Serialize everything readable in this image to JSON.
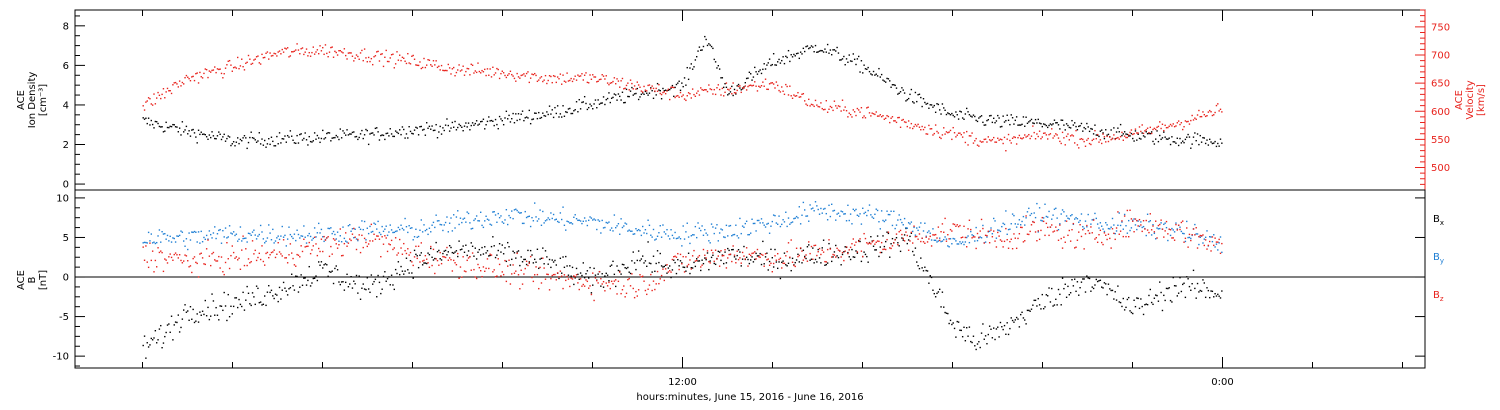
{
  "colors": {
    "black": "#000000",
    "blue": "#1f7fd4",
    "red": "#e8231d",
    "right_axis": "#e8231d"
  },
  "x_axis": {
    "label": "hours:minutes, June 15, 2016 - June 16, 2016",
    "range_hours": [
      -1.5,
      28.5
    ],
    "major_ticks": [
      {
        "hour": 12,
        "label": "12:00"
      },
      {
        "hour": 24,
        "label": "0:00"
      }
    ],
    "minor_tick_hours": [
      0,
      2,
      4,
      6,
      8,
      10,
      14,
      16,
      18,
      20,
      22,
      26,
      28
    ]
  },
  "chart_data": [
    {
      "type": "scatter",
      "name": "top-panel",
      "ylabel_lines": [
        "ACE",
        "Ion Density",
        "[cm⁻³]"
      ],
      "ylim": [
        -0.3,
        8.8
      ],
      "y_ticks": [
        0,
        2,
        4,
        6,
        8
      ],
      "right_axis": {
        "ylabel_lines": [
          "ACE",
          "Velocity",
          "[km/s]"
        ],
        "ylim": [
          460,
          780
        ],
        "ticks": [
          500,
          550,
          600,
          650,
          700,
          750
        ]
      },
      "series": [
        {
          "legend": "",
          "color": "black",
          "axis": "left",
          "x_hours": [
            0,
            1,
            2,
            3,
            4,
            5,
            6,
            7,
            8,
            9,
            10,
            11,
            12,
            12.5,
            13,
            14,
            15,
            16,
            17,
            18,
            19,
            20,
            21,
            22,
            23,
            24
          ],
          "y": [
            3.2,
            2.7,
            2.2,
            2.3,
            2.4,
            2.5,
            2.8,
            2.9,
            3.3,
            3.6,
            4.1,
            4.6,
            5.0,
            7.5,
            4.6,
            6.2,
            7.0,
            6.0,
            4.5,
            3.5,
            3.2,
            3.1,
            2.8,
            2.5,
            2.3,
            2.2
          ],
          "spread": 0.35
        },
        {
          "legend": "",
          "color": "red",
          "axis": "right",
          "x_hours": [
            0,
            1,
            2,
            3,
            4,
            5,
            6,
            7,
            8,
            9,
            10,
            11,
            12,
            13,
            14,
            15,
            16,
            17,
            18,
            19,
            20,
            21,
            22,
            23,
            24
          ],
          "y": [
            610,
            660,
            680,
            705,
            710,
            700,
            690,
            675,
            670,
            660,
            660,
            645,
            630,
            640,
            650,
            610,
            600,
            580,
            560,
            545,
            560,
            550,
            560,
            580,
            605
          ],
          "spread": 12
        }
      ]
    },
    {
      "type": "scatter",
      "name": "bottom-panel",
      "ylabel_lines": [
        "ACE",
        "B",
        "[nT]"
      ],
      "ylim": [
        -11.5,
        11
      ],
      "y_ticks": [
        -10,
        -5,
        0,
        5,
        10
      ],
      "zero_line": true,
      "series": [
        {
          "legend": "Bx",
          "color": "black",
          "x_hours": [
            0,
            0.5,
            1,
            2,
            3,
            4,
            5,
            6,
            7,
            8,
            9,
            10,
            11,
            12,
            13,
            14,
            15,
            16,
            17,
            18,
            18.5,
            19,
            20,
            21,
            22,
            23,
            24
          ],
          "y": [
            -9,
            -7,
            -4,
            -3.5,
            -1.5,
            1,
            -1.5,
            2,
            3.5,
            3,
            2,
            -0.5,
            2.5,
            1,
            3,
            2,
            3,
            3.5,
            5,
            -6,
            -8,
            -7,
            -3,
            0,
            -4,
            -1,
            -2
          ],
          "spread": 1.6
        },
        {
          "legend": "By",
          "color": "blue",
          "x_hours": [
            0,
            1,
            2,
            3,
            4,
            5,
            6,
            7,
            8,
            9,
            10,
            11,
            12,
            13,
            14,
            15,
            16,
            17,
            18,
            19,
            20,
            21,
            22,
            23,
            24
          ],
          "y": [
            5,
            5,
            5.5,
            5.5,
            5.5,
            6,
            6,
            7,
            8,
            7.5,
            7,
            6,
            5.5,
            6,
            7,
            8.5,
            8,
            7,
            4,
            6.5,
            8,
            7,
            6.5,
            6,
            4
          ],
          "spread": 1.3
        },
        {
          "legend": "Bz",
          "color": "red",
          "x_hours": [
            0,
            1,
            2,
            3,
            4,
            5,
            6,
            7,
            8,
            9,
            10,
            11,
            12,
            13,
            14,
            15,
            16,
            17,
            18,
            19,
            20,
            21,
            22,
            23,
            24
          ],
          "y": [
            3,
            2,
            2.5,
            3,
            4,
            5,
            3,
            2,
            1,
            0,
            -0.5,
            -1,
            2,
            3,
            2.5,
            3,
            4,
            5,
            6,
            5,
            6,
            5,
            7,
            6,
            4
          ],
          "spread": 1.7
        }
      ]
    }
  ],
  "legend": {
    "bx": {
      "base": "B",
      "sub": "x"
    },
    "by": {
      "base": "B",
      "sub": "y"
    },
    "bz": {
      "base": "B",
      "sub": "z"
    }
  }
}
